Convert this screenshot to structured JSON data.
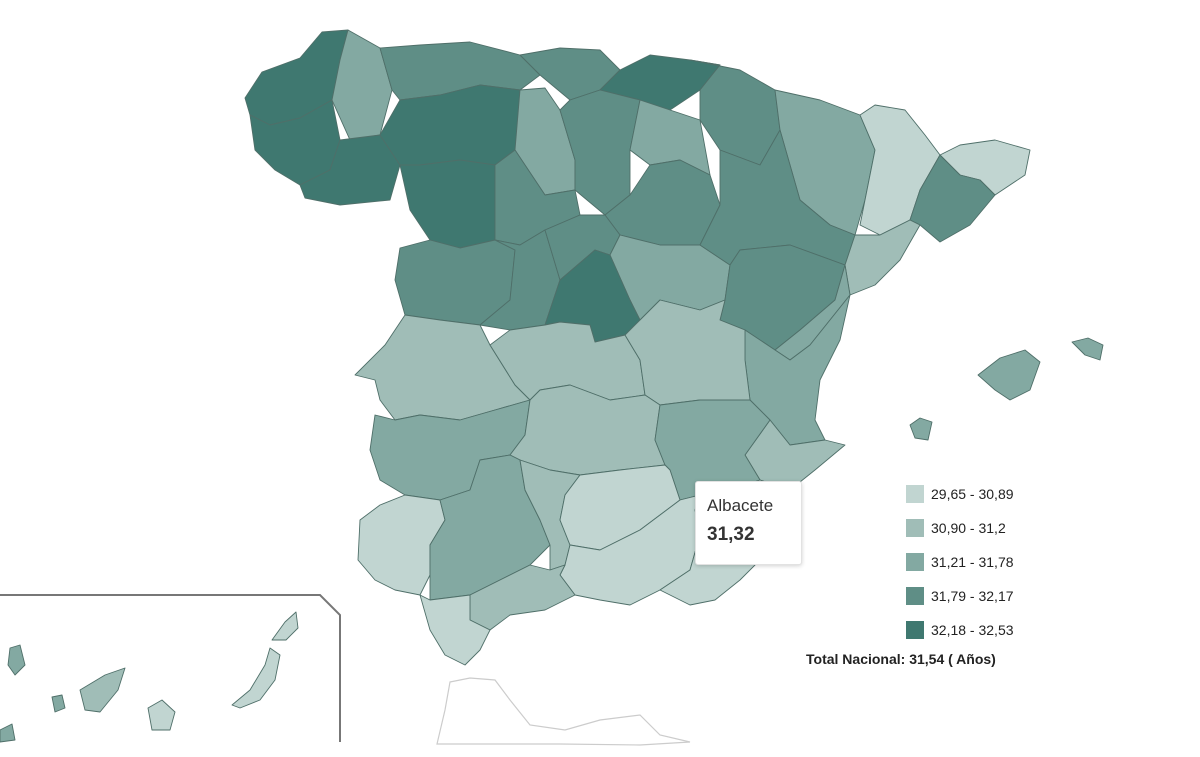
{
  "map": {
    "colors": {
      "c1": "#c1d5d1",
      "c2": "#a0bdb7",
      "c3": "#83a9a2",
      "c4": "#5f8e86",
      "c5": "#3f7870",
      "outline": "#4f6f69",
      "ceuta_fill": "#ffffff",
      "inset_border": "#777777"
    },
    "regions": [
      {
        "name": "Galicia",
        "class": "32,18 - 32,53"
      },
      {
        "name": "Asturias/Cantabria/Navarra/La Rioja",
        "class": "31,79 - 32,17"
      },
      {
        "name": "León/Zamora/Palencia",
        "class": "32,18 - 32,53"
      },
      {
        "name": "Madrid",
        "class": "32,18 - 32,53"
      },
      {
        "name": "Cataluña",
        "class": "29,65 - 30,89"
      },
      {
        "name": "Extremadura/Andalucía occidental",
        "class": "31,21 - 31,78"
      },
      {
        "name": "Castilla-La Mancha/Andalucía oriental",
        "class": "30,90 - 31,2"
      },
      {
        "name": "Baleares",
        "class": "31,21 - 31,78"
      },
      {
        "name": "Canarias",
        "class": "29,65 - 30,89"
      }
    ]
  },
  "tooltip": {
    "name": "Albacete",
    "value": "31,32"
  },
  "legend": {
    "items": [
      {
        "label": "29,65 - 30,89",
        "color": "#c1d5d1"
      },
      {
        "label": "30,90 - 31,2",
        "color": "#a0bdb7"
      },
      {
        "label": "31,21 - 31,78",
        "color": "#83a9a2"
      },
      {
        "label": "31,79 - 32,17",
        "color": "#5f8e86"
      },
      {
        "label": "32,18 - 32,53",
        "color": "#3f7870"
      }
    ]
  },
  "total": {
    "text": "Total Nacional: 31,54 ( Años)"
  }
}
